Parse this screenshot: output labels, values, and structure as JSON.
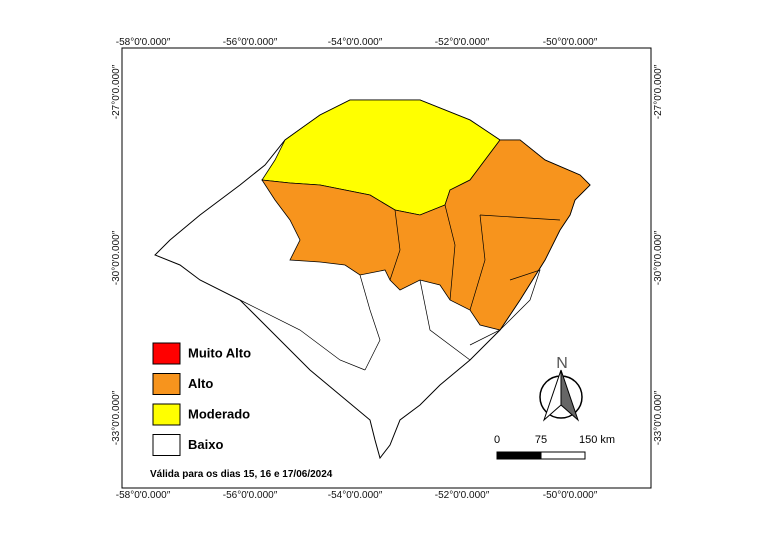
{
  "map": {
    "graticule": {
      "top": [
        "-58°0'0.000″",
        "-56°0'0.000″",
        "-54°0'0.000″",
        "-52°0'0.000″",
        "-50°0'0.000″"
      ],
      "bottom": [
        "-58°0'0.000″",
        "-56°0'0.000″",
        "-54°0'0.000″",
        "-52°0'0.000″",
        "-50°0'0.000″"
      ],
      "left": [
        "-27°0'0.000″",
        "-30°0'0.000″",
        "-33°0'0.000″"
      ],
      "right": [
        "-27°0'0.000″",
        "-30°0'0.000″",
        "-33°0'0.000″"
      ]
    },
    "legend": [
      {
        "label": "Muito Alto",
        "color": "#ff0000"
      },
      {
        "label": "Alto",
        "color": "#f7941d"
      },
      {
        "label": "Moderado",
        "color": "#ffff00"
      },
      {
        "label": "Baixo",
        "color": "#ffffff"
      }
    ],
    "note": "Válida para os dias 15, 16 e 17/06/2024",
    "scale_bar": [
      "0",
      "75",
      "150 km"
    ],
    "north": "N"
  }
}
